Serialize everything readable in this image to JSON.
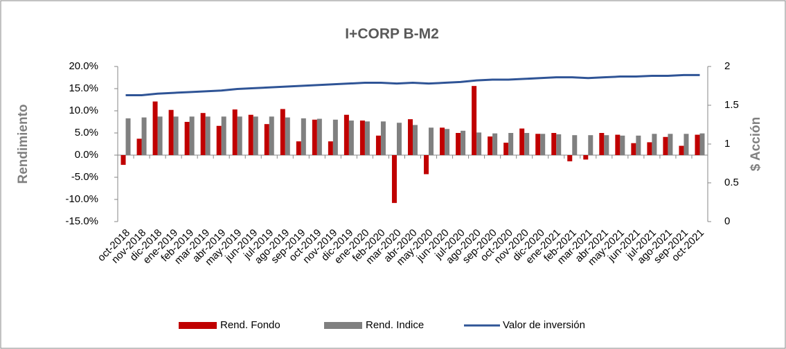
{
  "chart_data": {
    "type": "bar",
    "title": "I+CORP B-M2",
    "ylabel": "Rendimiento",
    "y2label": "$ Acción",
    "categories": [
      "oct-2018",
      "nov-2018",
      "dic-2018",
      "ene-2019",
      "feb-2019",
      "mar-2019",
      "abr-2019",
      "may-2019",
      "jun-2019",
      "jul-2019",
      "ago-2019",
      "sep-2019",
      "oct-2019",
      "nov-2019",
      "dic-2019",
      "ene-2020",
      "feb-2020",
      "mar-2020",
      "abr-2020",
      "may-2020",
      "jun-2020",
      "jul-2020",
      "ago-2020",
      "sep-2020",
      "oct-2020",
      "nov-2020",
      "dic-2020",
      "ene-2021",
      "feb-2021",
      "mar-2021",
      "abr-2021",
      "may-2021",
      "jun-2021",
      "jul-2021",
      "ago-2021",
      "sep-2021",
      "oct-2021"
    ],
    "series": [
      {
        "name": "Rend. Fondo",
        "type": "bar",
        "color": "#c00000",
        "values": [
          -2.2,
          3.7,
          12.1,
          10.2,
          7.5,
          9.5,
          6.6,
          10.3,
          9.1,
          7.0,
          10.4,
          3.1,
          8.0,
          3.1,
          9.1,
          7.8,
          4.4,
          -10.8,
          8.1,
          -4.3,
          6.2,
          5.0,
          15.6,
          4.2,
          2.8,
          6.0,
          4.8,
          5.0,
          -1.4,
          -1.0,
          5.0,
          4.6,
          2.7,
          2.9,
          4.1,
          2.1,
          4.6
        ]
      },
      {
        "name": "Rend. Indice",
        "type": "bar",
        "color": "#808080",
        "values": [
          8.3,
          8.5,
          8.7,
          8.7,
          8.7,
          8.7,
          8.7,
          8.7,
          8.7,
          8.7,
          8.5,
          8.3,
          8.2,
          8.0,
          7.8,
          7.6,
          7.6,
          7.3,
          6.8,
          6.2,
          5.9,
          5.5,
          5.1,
          4.9,
          5.0,
          5.0,
          4.8,
          4.7,
          4.5,
          4.5,
          4.5,
          4.4,
          4.4,
          4.8,
          4.8,
          4.8,
          4.9
        ]
      },
      {
        "name": "Valor de inversión",
        "type": "line",
        "axis": "y2",
        "color": "#2f5496",
        "values": [
          1.63,
          1.63,
          1.65,
          1.66,
          1.67,
          1.68,
          1.69,
          1.71,
          1.72,
          1.73,
          1.74,
          1.75,
          1.76,
          1.77,
          1.78,
          1.79,
          1.79,
          1.78,
          1.79,
          1.78,
          1.79,
          1.8,
          1.82,
          1.83,
          1.83,
          1.84,
          1.85,
          1.86,
          1.86,
          1.85,
          1.86,
          1.87,
          1.87,
          1.88,
          1.88,
          1.89,
          1.89
        ]
      }
    ],
    "ylim": [
      -15,
      20
    ],
    "yticks": [
      {
        "value": -15,
        "label": "-15.0%"
      },
      {
        "value": -10,
        "label": "-10.0%"
      },
      {
        "value": -5,
        "label": "-5.0%"
      },
      {
        "value": 0,
        "label": "0.0%"
      },
      {
        "value": 5,
        "label": "5.0%"
      },
      {
        "value": 10,
        "label": "10.0%"
      },
      {
        "value": 15,
        "label": "15.0%"
      },
      {
        "value": 20,
        "label": "20.0%"
      }
    ],
    "y2lim": [
      0,
      2
    ],
    "y2ticks": [
      0,
      0.5,
      1,
      1.5,
      2
    ],
    "grid": false,
    "legend": "bottom"
  }
}
